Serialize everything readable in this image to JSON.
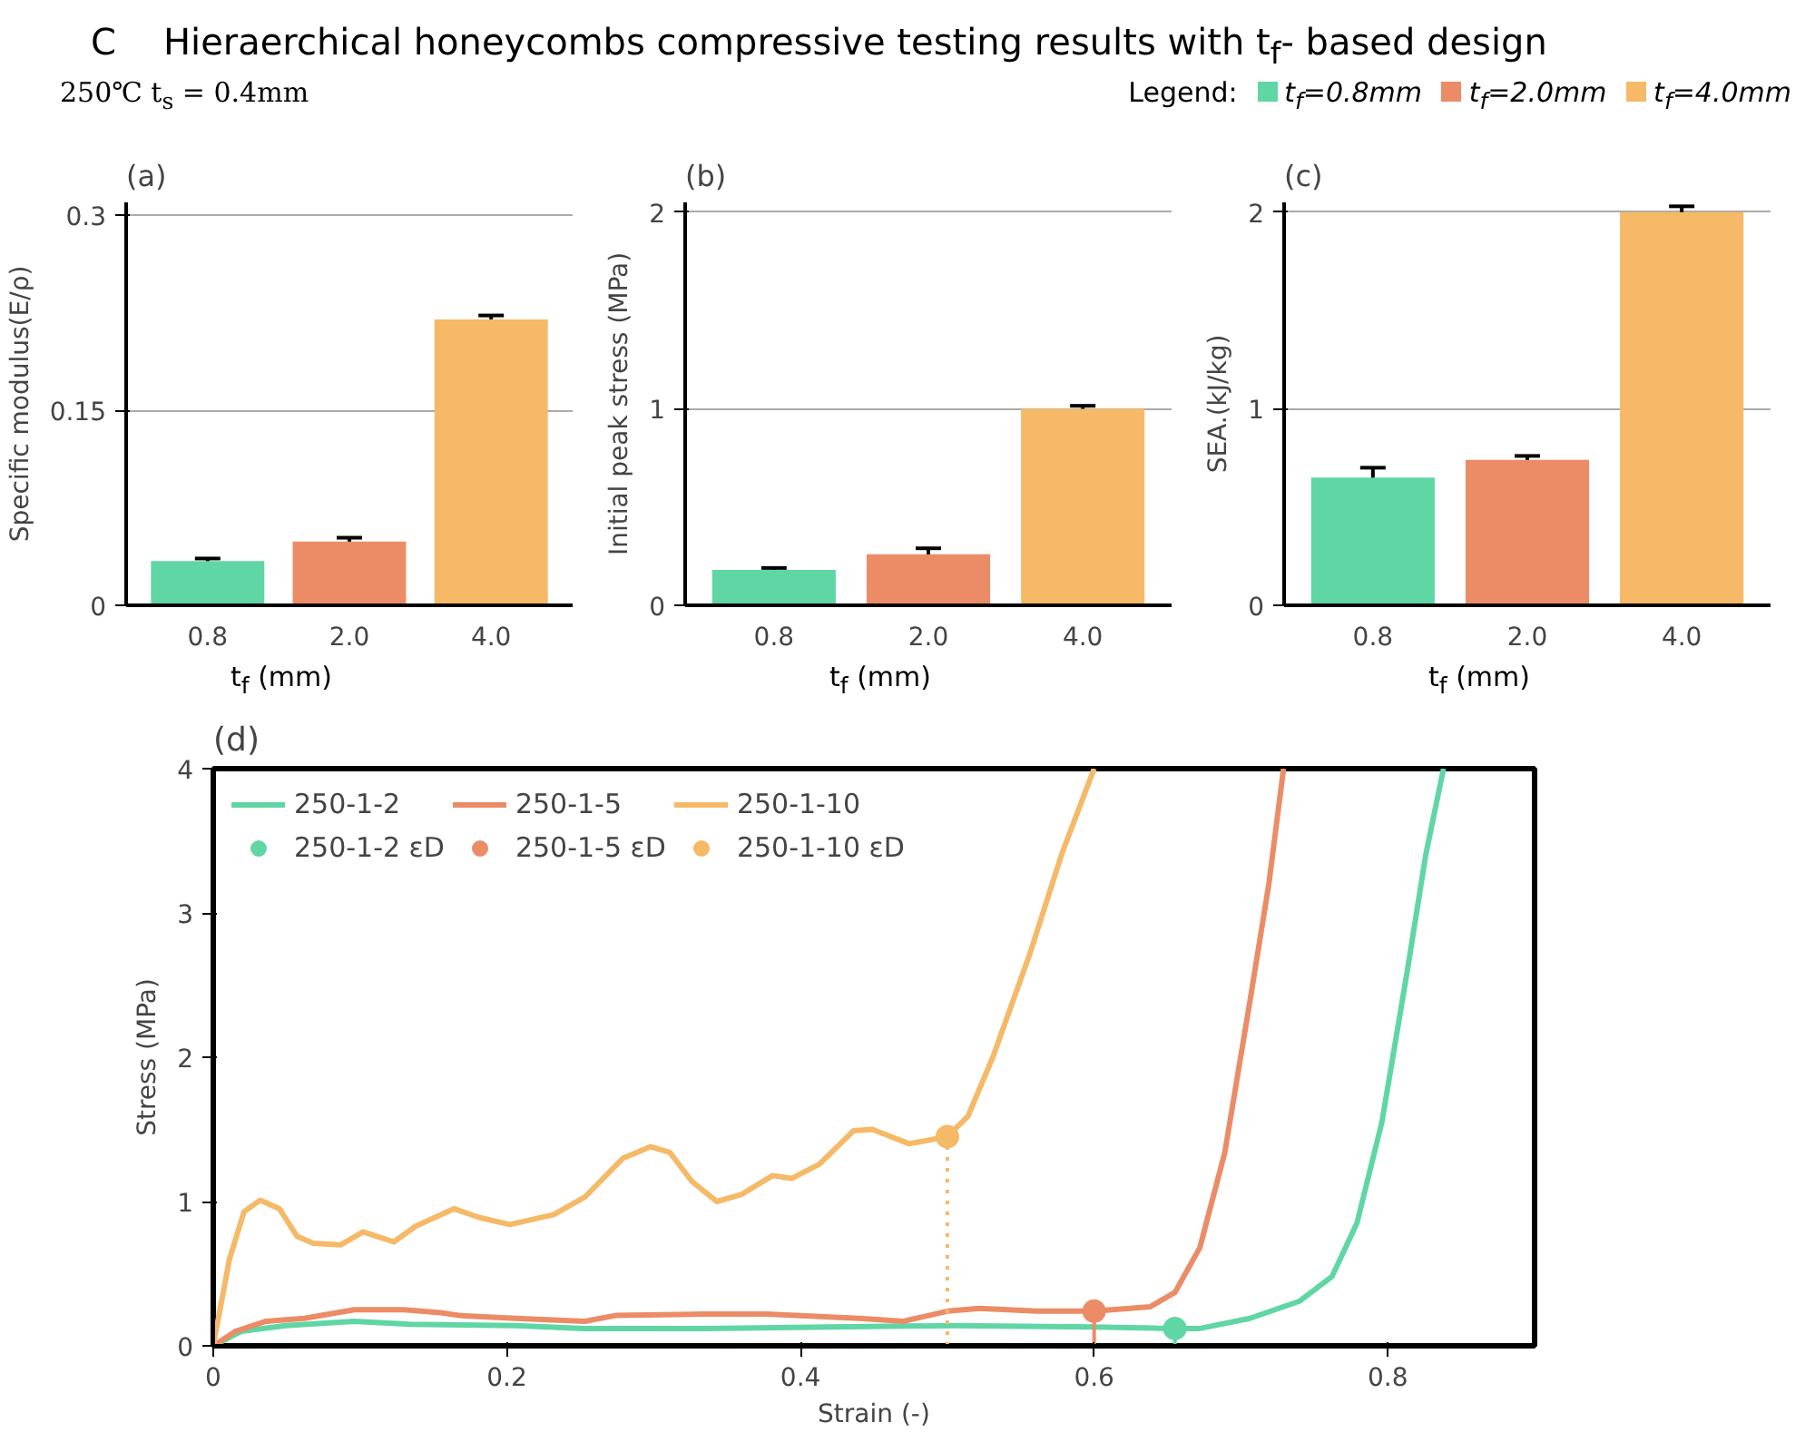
{
  "chart_data": [
    {
      "type": "bar",
      "title": "(a)",
      "annotations": [
        "C",
        "Hieraerchical honeycombs compressive testing results with t$_{f}$- based design",
        "250℃ t$_{s}$ = 0.4mm"
      ],
      "grid": "y",
      "categories": [
        "0.8",
        "2.0",
        "4.0"
      ],
      "xlabel": "t$_{f}$ (mm)",
      "ylabel": "Specific modulus(E/ρ)",
      "ylim": [
        0,
        0.31
      ],
      "yticks": [
        0,
        0.15,
        0.3
      ],
      "series": [
        {
          "color": "#5fd6a4",
          "values": [
            0.034,
            null,
            null
          ],
          "errors": [
            0.002,
            null,
            null
          ]
        },
        {
          "color": "#eb8c66",
          "values": [
            null,
            0.049,
            null
          ],
          "errors": [
            null,
            0.003,
            null
          ]
        },
        {
          "color": "#f5b967",
          "values": [
            null,
            null,
            0.22
          ],
          "errors": [
            null,
            null,
            0.003
          ]
        }
      ]
    },
    {
      "type": "bar",
      "title": "(b)",
      "grid": "y",
      "categories": [
        "0.8",
        "2.0",
        "4.0"
      ],
      "xlabel": "t$_{f}$ (mm)",
      "ylabel": "Initial peak stress (MPa)",
      "ylim": [
        0,
        2.05
      ],
      "yticks": [
        0,
        1,
        2
      ],
      "series": [
        {
          "color": "#5fd6a4",
          "values": [
            0.18,
            null,
            null
          ],
          "errors": [
            0.01,
            null,
            null
          ]
        },
        {
          "color": "#eb8c66",
          "values": [
            null,
            0.26,
            null
          ],
          "errors": [
            null,
            0.03,
            null
          ]
        },
        {
          "color": "#f5b967",
          "values": [
            null,
            null,
            1.0
          ],
          "errors": [
            null,
            null,
            0.015
          ]
        }
      ]
    },
    {
      "type": "bar",
      "title": "(c)",
      "legend_title": "Legend:",
      "legend": "top right",
      "grid": "y",
      "categories": [
        "0.8",
        "2.0",
        "4.0"
      ],
      "xlabel": "t$_{f}$ (mm)",
      "ylabel": "SEA.(kJ/kg)",
      "ylim": [
        0,
        2.05
      ],
      "yticks": [
        0,
        1,
        2
      ],
      "series": [
        {
          "name": "t$_{f}$=0.8mm",
          "color": "#5fd6a4",
          "values": [
            0.65,
            null,
            null
          ],
          "errors": [
            0.05,
            null,
            null
          ]
        },
        {
          "name": "t$_{f}$=2.0mm",
          "color": "#eb8c66",
          "values": [
            null,
            0.74,
            null
          ],
          "errors": [
            null,
            0.02,
            null
          ]
        },
        {
          "name": "t$_{f}$=4.0mm",
          "color": "#f5b967",
          "values": [
            null,
            null,
            2.0
          ],
          "errors": [
            null,
            null,
            0.03
          ]
        }
      ]
    },
    {
      "type": "line",
      "title": "(d)",
      "xlabel": "Strain (-)",
      "ylabel": "Stress (MPa)",
      "xlim": [
        0,
        0.9
      ],
      "ylim": [
        0,
        4
      ],
      "xticks": [
        0,
        0.2,
        0.4,
        0.6,
        0.8
      ],
      "yticks": [
        0,
        1,
        2,
        3,
        4
      ],
      "grid": false,
      "legend": "top left",
      "line_style": "solid",
      "series": [
        {
          "name": "250-1-2",
          "color": "#5fd6a4",
          "x": [
            0,
            0.019,
            0.049,
            0.096,
            0.134,
            0.206,
            0.253,
            0.334,
            0.419,
            0.504,
            0.6,
            0.653,
            0.672,
            0.706,
            0.74,
            0.762,
            0.779,
            0.796,
            0.813,
            0.826,
            0.838
          ],
          "values": [
            0,
            0.1,
            0.14,
            0.17,
            0.15,
            0.14,
            0.12,
            0.12,
            0.13,
            0.14,
            0.13,
            0.12,
            0.12,
            0.19,
            0.31,
            0.48,
            0.85,
            1.55,
            2.58,
            3.41,
            4.0
          ]
        },
        {
          "name": "250-1-5",
          "color": "#eb8c66",
          "x": [
            0,
            0.015,
            0.036,
            0.062,
            0.096,
            0.13,
            0.155,
            0.168,
            0.206,
            0.253,
            0.274,
            0.334,
            0.377,
            0.44,
            0.47,
            0.5,
            0.522,
            0.561,
            0.6,
            0.638,
            0.655,
            0.672,
            0.689,
            0.706,
            0.719,
            0.729
          ],
          "values": [
            0,
            0.1,
            0.17,
            0.19,
            0.25,
            0.25,
            0.23,
            0.21,
            0.19,
            0.17,
            0.21,
            0.22,
            0.22,
            0.19,
            0.17,
            0.24,
            0.26,
            0.24,
            0.24,
            0.27,
            0.37,
            0.68,
            1.34,
            2.38,
            3.2,
            4.0
          ]
        },
        {
          "name": "250-1-10",
          "color": "#f5b967",
          "x": [
            0,
            0.011,
            0.021,
            0.032,
            0.045,
            0.057,
            0.068,
            0.087,
            0.102,
            0.111,
            0.123,
            0.138,
            0.164,
            0.181,
            0.202,
            0.232,
            0.253,
            0.279,
            0.298,
            0.311,
            0.326,
            0.343,
            0.36,
            0.381,
            0.394,
            0.413,
            0.436,
            0.449,
            0.474,
            0.5,
            0.514,
            0.531,
            0.556,
            0.578,
            0.6
          ],
          "values": [
            0,
            0.6,
            0.93,
            1.01,
            0.95,
            0.76,
            0.71,
            0.7,
            0.79,
            0.76,
            0.72,
            0.83,
            0.95,
            0.89,
            0.84,
            0.91,
            1.03,
            1.3,
            1.38,
            1.34,
            1.14,
            1.0,
            1.05,
            1.18,
            1.16,
            1.26,
            1.49,
            1.5,
            1.4,
            1.45,
            1.59,
            2.0,
            2.71,
            3.41,
            4.0
          ]
        },
        {
          "type": "lollipop",
          "name": "250-1-2 εD",
          "color": "#5fd6a4",
          "marker": "circle",
          "line_style": "solid",
          "x": [
            0.655
          ],
          "values": [
            0.12
          ]
        },
        {
          "type": "lollipop",
          "name": "250-1-5 εD",
          "color": "#eb8c66",
          "marker": "circle",
          "line_style": "solid",
          "x": [
            0.6
          ],
          "values": [
            0.24
          ]
        },
        {
          "type": "lollipop",
          "name": "250-1-10 εD",
          "color": "#f5b967",
          "marker": "circle",
          "line_style": "dotted",
          "x": [
            0.5
          ],
          "values": [
            1.45
          ]
        }
      ]
    }
  ]
}
